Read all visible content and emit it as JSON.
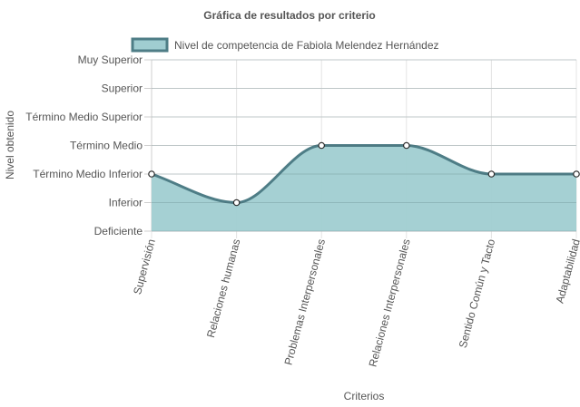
{
  "chart_data": {
    "type": "area",
    "title": "Gráfica de resultados por criterio",
    "xlabel": "Criterios",
    "ylabel": "Nivel obtenido",
    "categories": [
      "Supervisión",
      "Relaciones humanas",
      "Problemas Interpersonales",
      "Relaciones Interpersonales",
      "Sentido Común y Tacto",
      "Adaptabilidad"
    ],
    "y_levels": [
      "Deficiente",
      "Inferior",
      "Término Medio Inferior",
      "Término Medio",
      "Término Medio Superior",
      "Superior",
      "Muy Superior"
    ],
    "ylim": [
      0,
      6
    ],
    "series": [
      {
        "name": "Nivel de competencia de Fabiola Melendez Hernández",
        "values": [
          2,
          1,
          3,
          3,
          2,
          2
        ],
        "line_color": "#4e7d86",
        "fill_color": "#a0cdd1"
      }
    ],
    "legend_position": "top",
    "grid": true,
    "smooth": true
  }
}
